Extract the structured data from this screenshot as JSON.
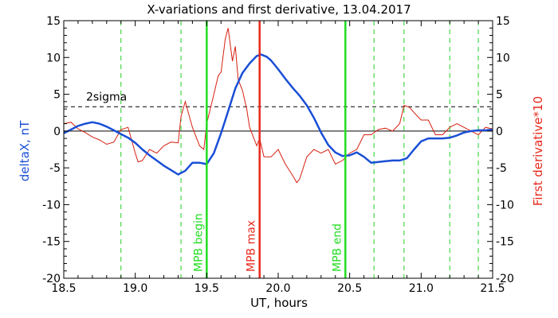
{
  "chart_data": {
    "type": "line",
    "title": "X-variations and first derivative, 13.04.2017",
    "xlabel": "UT, hours",
    "ylabel": "deltaX, nT",
    "ylabel_right": "First derivative*10",
    "xlim": [
      18.5,
      21.5
    ],
    "ylim": [
      -20,
      15
    ],
    "ylim_right": [
      -20,
      15
    ],
    "x_ticks": [
      "18.5",
      "19.0",
      "19.5",
      "20.0",
      "20.5",
      "21.0",
      "21.5"
    ],
    "x_tick_values": [
      18.5,
      19.0,
      19.5,
      20.0,
      20.5,
      21.0,
      21.5
    ],
    "y_ticks": [
      "-20",
      "-15",
      "-10",
      "-5",
      "0",
      "5",
      "10",
      "15"
    ],
    "y_tick_values": [
      -20,
      -15,
      -10,
      -5,
      0,
      5,
      10,
      15
    ],
    "y_ticks_right": [
      "-20",
      "-15",
      "-10",
      "-5",
      "0",
      "5",
      "10",
      "15"
    ],
    "grid": false,
    "colors": {
      "deltaX": "#1a4fd6",
      "derivative": "#d62010",
      "mpb_boundary": "#22dd22",
      "mpb_max": "#e8281c",
      "dashed_markers": "#22cc22",
      "ylabel_left": "#1a4fd6",
      "ylabel_right": "#e8281c",
      "label_green": "#22dd22",
      "label_red": "#e8281c"
    },
    "threshold": {
      "label": "2sigma",
      "y": 3.3
    },
    "zero_line": 0,
    "vertical_markers": [
      {
        "x": 19.5,
        "label": "MPB begin",
        "kind": "boundary"
      },
      {
        "x": 19.87,
        "label": "MPB max",
        "kind": "max"
      },
      {
        "x": 20.47,
        "label": "MPB end",
        "kind": "boundary"
      }
    ],
    "dashed_markers_x": [
      18.9,
      19.32,
      20.67,
      20.88,
      21.2,
      21.4
    ],
    "series": [
      {
        "axis": "left",
        "style": "thick",
        "x": [
          18.5,
          18.55,
          18.6,
          18.65,
          18.7,
          18.75,
          18.8,
          18.85,
          18.9,
          18.95,
          19.0,
          19.05,
          19.1,
          19.15,
          19.2,
          19.25,
          19.3,
          19.35,
          19.4,
          19.45,
          19.5,
          19.55,
          19.6,
          19.65,
          19.7,
          19.75,
          19.8,
          19.85,
          19.88,
          19.92,
          19.95,
          20.0,
          20.05,
          20.1,
          20.15,
          20.2,
          20.25,
          20.3,
          20.35,
          20.4,
          20.45,
          20.5,
          20.55,
          20.6,
          20.65,
          20.7,
          20.75,
          20.8,
          20.85,
          20.9,
          20.95,
          21.0,
          21.05,
          21.1,
          21.15,
          21.2,
          21.25,
          21.3,
          21.35,
          21.4,
          21.45,
          21.5
        ],
        "values": [
          -0.3,
          0.2,
          0.7,
          1.0,
          1.2,
          1.0,
          0.6,
          0.1,
          -0.4,
          -0.9,
          -1.6,
          -2.5,
          -3.3,
          -4.0,
          -4.7,
          -5.3,
          -5.9,
          -5.4,
          -4.3,
          -4.3,
          -4.5,
          -3.0,
          -0.3,
          2.7,
          5.8,
          7.9,
          9.2,
          10.2,
          10.4,
          10.1,
          9.6,
          8.4,
          7.1,
          5.9,
          4.8,
          3.5,
          1.8,
          -0.2,
          -1.9,
          -2.9,
          -3.4,
          -3.3,
          -2.9,
          -3.5,
          -4.3,
          -4.2,
          -4.1,
          -4.0,
          -4.0,
          -3.7,
          -2.5,
          -1.4,
          -1.0,
          -1.0,
          -1.0,
          -0.9,
          -0.6,
          -0.2,
          0.0,
          0.1,
          0.1,
          0.2
        ]
      },
      {
        "axis": "right",
        "style": "thin",
        "x": [
          18.5,
          18.55,
          18.6,
          18.65,
          18.7,
          18.75,
          18.8,
          18.85,
          18.9,
          18.95,
          19.0,
          19.02,
          19.05,
          19.1,
          19.15,
          19.2,
          19.25,
          19.3,
          19.32,
          19.35,
          19.4,
          19.45,
          19.48,
          19.5,
          19.55,
          19.58,
          19.6,
          19.63,
          19.65,
          19.68,
          19.7,
          19.72,
          19.75,
          19.78,
          19.8,
          19.85,
          19.87,
          19.9,
          19.95,
          20.0,
          20.05,
          20.1,
          20.13,
          20.15,
          20.2,
          20.25,
          20.3,
          20.35,
          20.4,
          20.45,
          20.5,
          20.55,
          20.6,
          20.65,
          20.7,
          20.75,
          20.8,
          20.85,
          20.88,
          20.92,
          20.95,
          21.0,
          21.05,
          21.1,
          21.15,
          21.2,
          21.25,
          21.3,
          21.35,
          21.4,
          21.45,
          21.5
        ],
        "values": [
          1.0,
          1.2,
          0.3,
          -0.2,
          -0.8,
          -1.2,
          -1.8,
          -1.5,
          0.2,
          0.5,
          -3.0,
          -4.2,
          -4.0,
          -2.5,
          -3.0,
          -2.0,
          -1.5,
          -1.6,
          2.0,
          4.0,
          0.5,
          -2.0,
          -2.5,
          1.0,
          5.0,
          7.5,
          8.0,
          12.5,
          14.0,
          9.5,
          11.5,
          7.0,
          5.5,
          3.0,
          0.5,
          -2.0,
          -1.0,
          -3.5,
          -3.5,
          -2.5,
          -4.5,
          -6.0,
          -7.0,
          -6.5,
          -3.5,
          -2.5,
          -3.0,
          -2.5,
          -4.5,
          -4.0,
          -3.0,
          -2.5,
          -0.5,
          -0.5,
          0.2,
          0.4,
          0.0,
          1.0,
          3.5,
          3.2,
          2.5,
          1.5,
          1.5,
          -0.5,
          -0.5,
          0.5,
          1.0,
          0.5,
          0.0,
          -0.5,
          0.5,
          0.3
        ]
      }
    ]
  }
}
